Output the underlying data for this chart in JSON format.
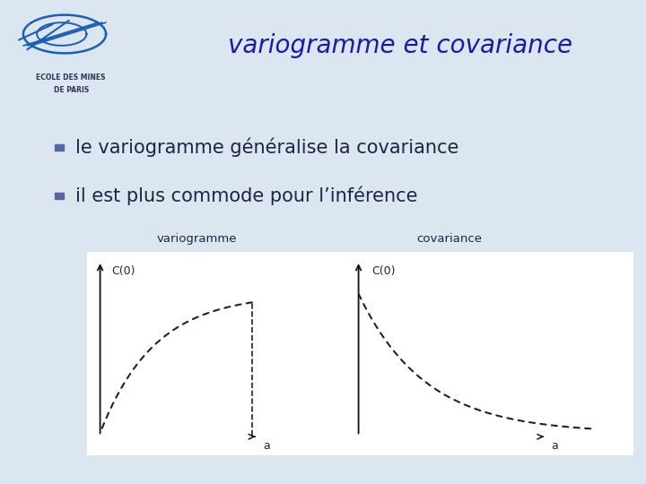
{
  "title": "variogramme et covariance",
  "title_color": "#1a1aaa",
  "title_fontsize": 20,
  "bg_color": "#dce6f1",
  "bullet_color": "#5566aa",
  "bullet1": "le variogramme généralise la covariance",
  "bullet2": "il est plus commode pour l’inférence",
  "bullet_fontsize": 15,
  "panel_bg": "#f0f0f5",
  "curve_color": "#222222",
  "label_variogramme": "variogramme",
  "label_covariance": "covariance",
  "label_C0": "C(0)",
  "label_a": "a",
  "axes_color": "#111111",
  "text_color": "#222244"
}
